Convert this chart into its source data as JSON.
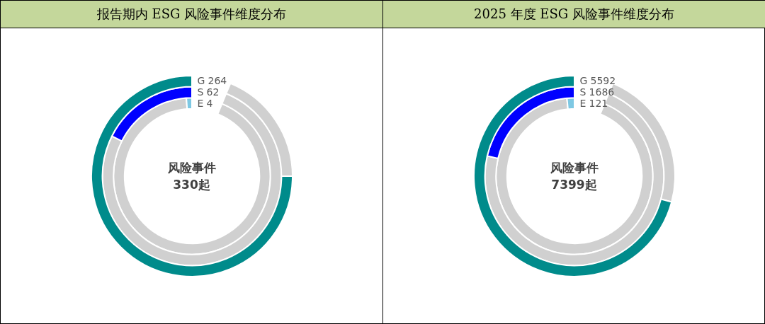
{
  "chart_data": [
    {
      "type": "other",
      "title": "报告期内 ESG 风险事件维度分布",
      "categories": [
        "G",
        "S",
        "E"
      ],
      "values": [
        264,
        62,
        4
      ],
      "value_labels": [
        "264",
        "62",
        "4"
      ],
      "colors": [
        "#008b8b",
        "#0000ff",
        "#7ec8e3"
      ],
      "annotations": [
        "风险事件",
        "330起"
      ]
    },
    {
      "type": "other",
      "title": "2025 年度 ESG 风险事件维度分布",
      "categories": [
        "G",
        "S",
        "E"
      ],
      "values": [
        5592,
        1686,
        121
      ],
      "value_labels": [
        "5592",
        "1686",
        "121"
      ],
      "colors": [
        "#008b8b",
        "#0000ff",
        "#7ec8e3"
      ],
      "annotations": [
        "风险事件",
        "7399起"
      ]
    }
  ]
}
